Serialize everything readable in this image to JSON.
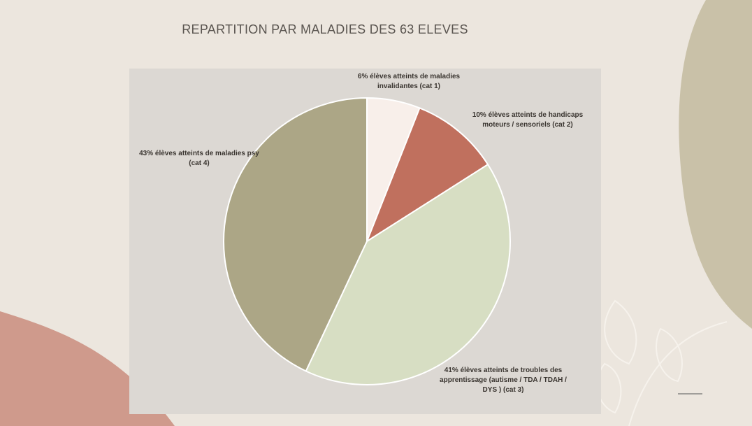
{
  "chart_data": {
    "type": "pie",
    "title": "REPARTITION PAR MALADIES DES 63 ELEVES",
    "values": [
      6,
      10,
      41,
      43
    ],
    "value_labels": [
      "6% élèves atteints de maladies invalidantes (cat 1)",
      "10% élèves atteints de handicaps moteurs / sensoriels (cat 2)",
      "41% élèves atteints de troubles des apprentissage (autisme / TDA / TDAH / DYS ) (cat 3)",
      "43% élèves atteints de maladies psy (cat 4)"
    ],
    "colors": [
      "#f8efea",
      "#c0705e",
      "#d7dec3",
      "#aca686"
    ]
  }
}
